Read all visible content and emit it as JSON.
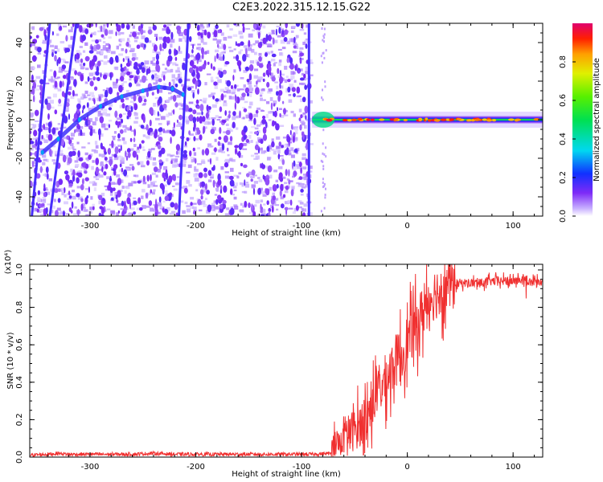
{
  "title": "C2E3.2022.315.12.15.G22",
  "chart_data": [
    {
      "type": "heatmap",
      "xlabel": "Height of straight line (km)",
      "ylabel": "Frequency (Hz)",
      "xlim": [
        -357,
        128
      ],
      "ylim": [
        -50,
        50
      ],
      "x_ticks": [
        -300,
        -200,
        -100,
        0,
        100
      ],
      "x_tick_labels": [
        "-300",
        "-200",
        "-100",
        "0",
        "100"
      ],
      "y_ticks": [
        -40,
        -20,
        0,
        20,
        40
      ],
      "y_tick_labels": [
        "-40",
        "-20",
        "0",
        "20",
        "40"
      ],
      "noise_region_x": [
        -357,
        -92
      ],
      "signal_region_x": [
        -90,
        128
      ],
      "signal_center_hz": 0,
      "arc_trace": [
        {
          "x": -345,
          "y": -17
        },
        {
          "x": -330,
          "y": -10
        },
        {
          "x": -310,
          "y": 0
        },
        {
          "x": -290,
          "y": 7
        },
        {
          "x": -270,
          "y": 12
        },
        {
          "x": -250,
          "y": 15
        },
        {
          "x": -235,
          "y": 17
        },
        {
          "x": -222,
          "y": 16
        },
        {
          "x": -212,
          "y": 13
        }
      ],
      "streaks": [
        {
          "x_top": -338,
          "x_bottom": -355
        },
        {
          "x_top": -313,
          "x_bottom": -338
        },
        {
          "x_top": -207,
          "x_bottom": -216
        },
        {
          "x_top": -93,
          "x_bottom": -93
        }
      ],
      "colorbar": {
        "label": "Normalized spectral amplitude",
        "ticks": [
          0.0,
          0.2,
          0.4,
          0.6,
          0.8
        ],
        "tick_labels": [
          "0.0",
          "0.2",
          "0.4",
          "0.6",
          "0.8"
        ],
        "range": [
          0,
          1
        ],
        "stops": [
          {
            "v": 0.0,
            "color": "#ffffff"
          },
          {
            "v": 0.04,
            "color": "#c8b0ff"
          },
          {
            "v": 0.12,
            "color": "#7e2bf7"
          },
          {
            "v": 0.22,
            "color": "#1030ff"
          },
          {
            "v": 0.34,
            "color": "#00d8f0"
          },
          {
            "v": 0.5,
            "color": "#00e050"
          },
          {
            "v": 0.62,
            "color": "#58f000"
          },
          {
            "v": 0.74,
            "color": "#e0f000"
          },
          {
            "v": 0.84,
            "color": "#ffa000"
          },
          {
            "v": 0.92,
            "color": "#ff2000"
          },
          {
            "v": 1.0,
            "color": "#e0006e"
          }
        ]
      }
    },
    {
      "type": "line",
      "xlabel": "Height of straight line (km)",
      "ylabel": "SNR (10 * v/v)",
      "y_scale_label": "(x10⁴)",
      "xlim": [
        -357,
        128
      ],
      "ylim": [
        0,
        1.03
      ],
      "x_ticks": [
        -300,
        -200,
        -100,
        0,
        100
      ],
      "x_tick_labels": [
        "-300",
        "-200",
        "-100",
        "0",
        "100"
      ],
      "y_ticks": [
        0.0,
        0.2,
        0.4,
        0.6,
        0.8,
        1.0
      ],
      "y_tick_labels": [
        "0.0",
        "0.2",
        "0.4",
        "0.6",
        "0.8",
        "1.0"
      ],
      "line_color": "#f03030",
      "series": [
        {
          "x": [
            -357,
            -340,
            -330,
            -320,
            -300,
            -280,
            -260,
            -240,
            -220,
            -200,
            -180,
            -160,
            -140,
            -120,
            -100,
            -90,
            -72,
            -65,
            -60,
            -55,
            -50,
            -45,
            -40,
            -35,
            -30,
            -25,
            -20,
            -15,
            -10,
            -5,
            0,
            5,
            10,
            15,
            20,
            25,
            30,
            35,
            40,
            50,
            60,
            70,
            80,
            90,
            100,
            110,
            118,
            122,
            128
          ],
          "y": [
            0.01,
            0.015,
            0.02,
            0.015,
            0.015,
            0.015,
            0.015,
            0.02,
            0.015,
            0.015,
            0.015,
            0.015,
            0.015,
            0.015,
            0.015,
            0.015,
            0.02,
            0.08,
            0.12,
            0.12,
            0.15,
            0.17,
            0.22,
            0.25,
            0.33,
            0.37,
            0.42,
            0.48,
            0.52,
            0.55,
            0.62,
            0.67,
            0.72,
            0.78,
            0.84,
            0.87,
            0.89,
            0.91,
            0.92,
            0.93,
            0.93,
            0.93,
            0.94,
            0.94,
            0.94,
            0.95,
            0.94,
            0.93,
            0.93
          ]
        }
      ]
    }
  ]
}
